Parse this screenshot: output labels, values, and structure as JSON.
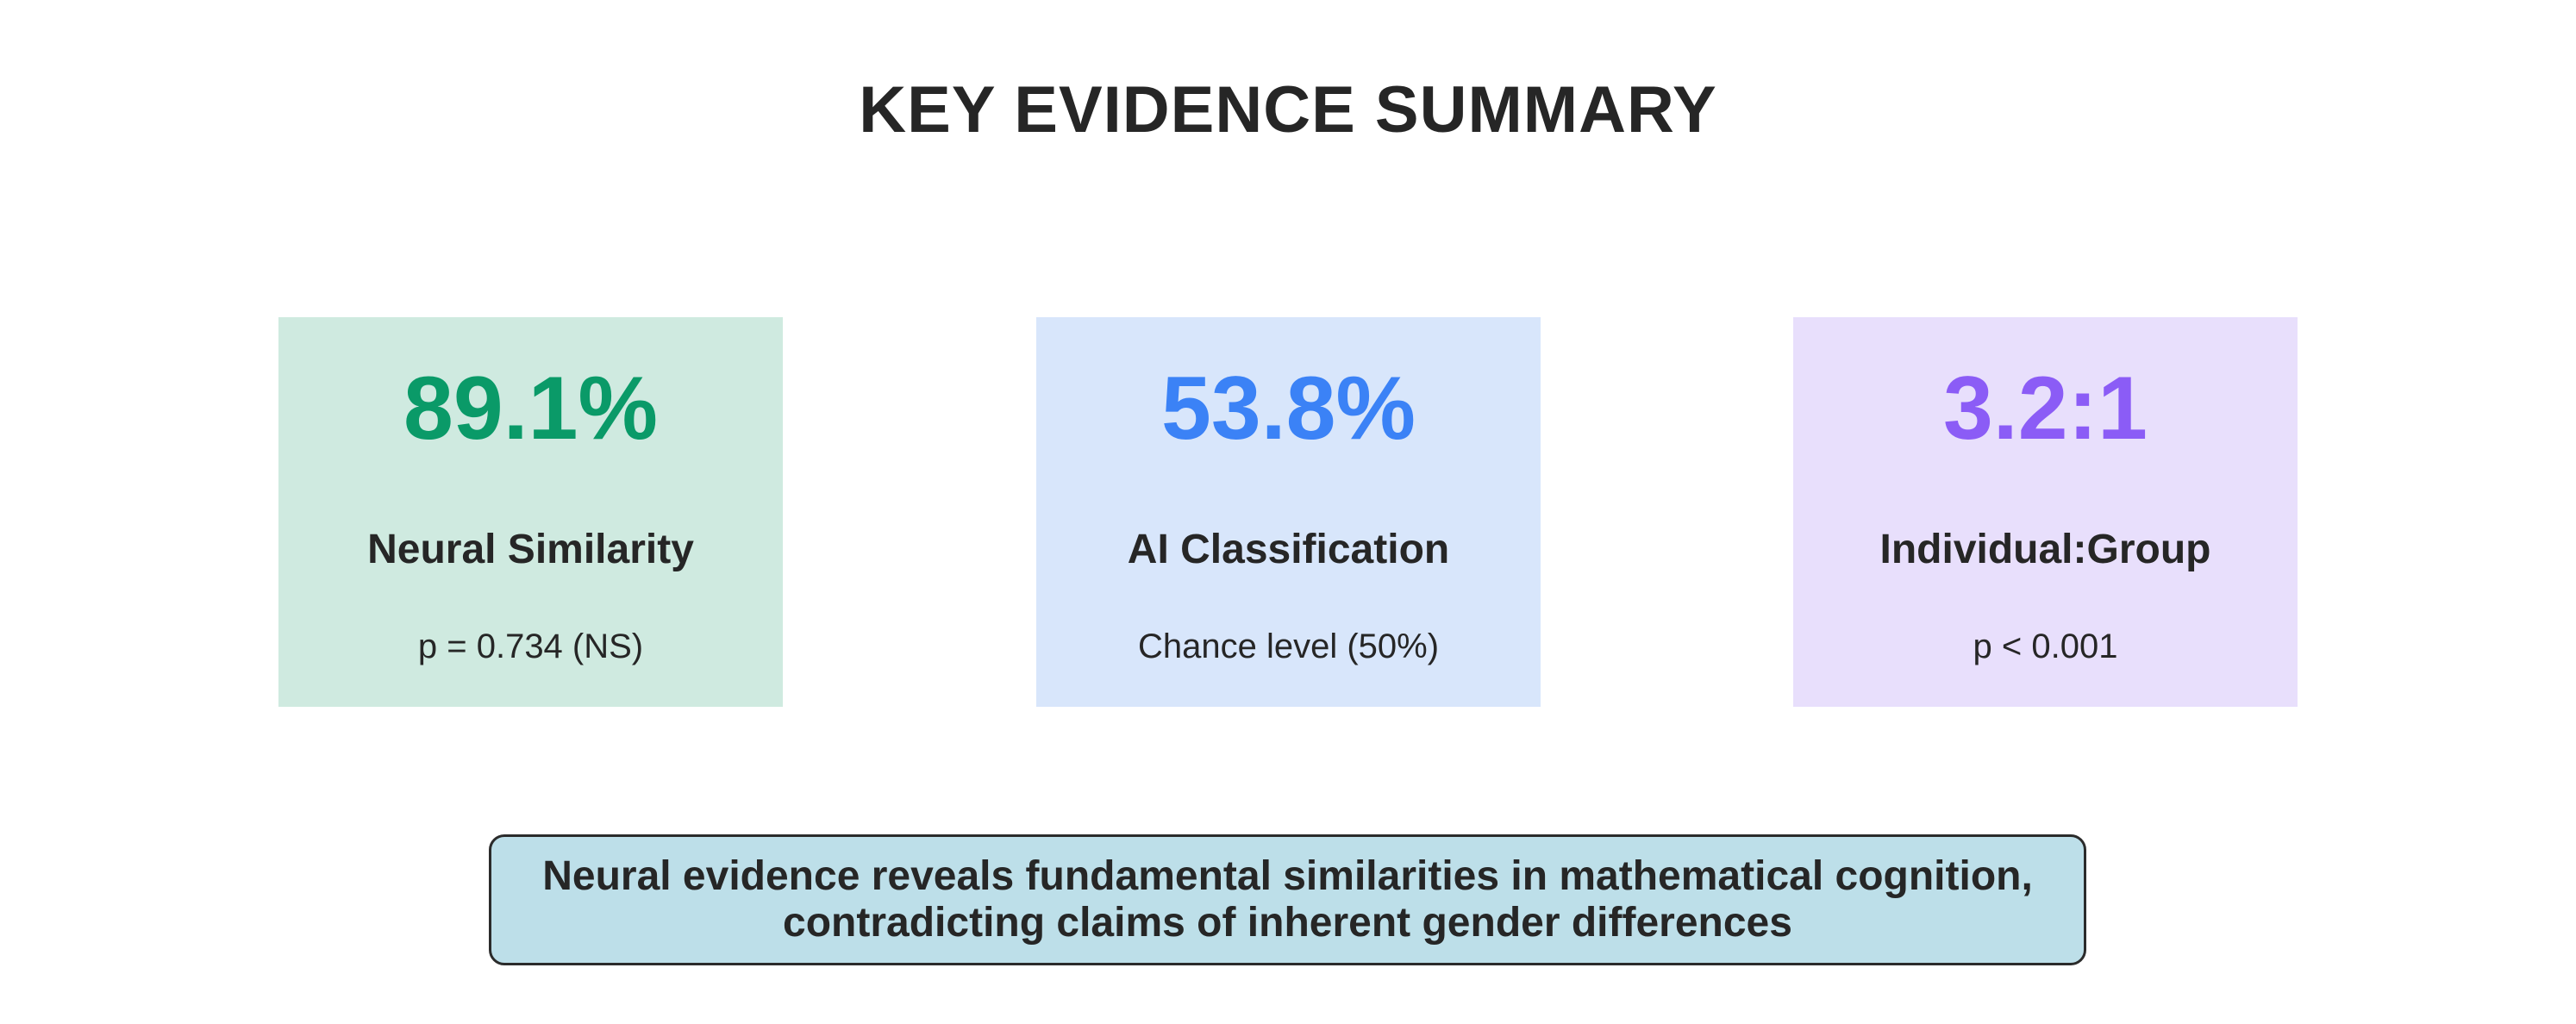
{
  "title": "KEY EVIDENCE SUMMARY",
  "cards": [
    {
      "value": "89.1%",
      "label": "Neural Similarity",
      "sub": "p = 0.734 (NS)",
      "value_color": "#0a9a68",
      "bg_color": "#cfeae0"
    },
    {
      "value": "53.8%",
      "label": "AI Classification",
      "sub": "Chance level (50%)",
      "value_color": "#3b82f6",
      "bg_color": "#d8e6fb"
    },
    {
      "value": "3.2:1",
      "label": "Individual:Group",
      "sub": "p < 0.001",
      "value_color": "#8b5cf6",
      "bg_color": "#e8dffc"
    }
  ],
  "conclusion": {
    "line1": "Neural evidence reveals fundamental similarities in mathematical cognition,",
    "line2": "contradicting claims of inherent gender differences",
    "bg_color": "#bddfe9",
    "border_color": "#2b2b2b"
  }
}
